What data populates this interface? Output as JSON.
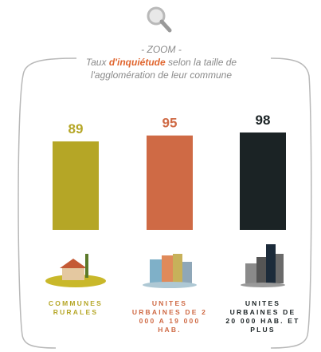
{
  "header": {
    "kicker": "- ZOOM -",
    "title_before": "Taux ",
    "title_highlight": "d'inquiétude",
    "title_after": " selon la taille de l'agglomération de leur commune"
  },
  "chart_data": {
    "type": "bar",
    "categories": [
      "COMMUNES RURALES",
      "UNITES URBAINES DE 2 000 A 19 000 HAB.",
      "UNITES URBAINES DE 20 000 HAB. ET PLUS"
    ],
    "values": [
      89,
      95,
      98
    ],
    "colors": [
      "#b5a626",
      "#cf6a45",
      "#1b2325"
    ]
  }
}
